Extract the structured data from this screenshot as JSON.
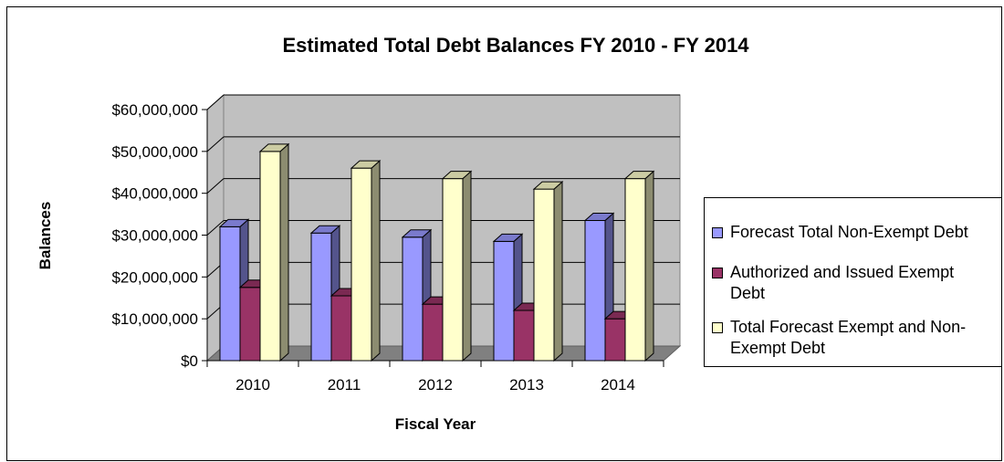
{
  "chart_data": {
    "type": "bar",
    "title": "Estimated Total Debt Balances FY 2010 - FY 2014",
    "xlabel": "Fiscal Year",
    "ylabel": "Balances",
    "categories": [
      "2010",
      "2011",
      "2012",
      "2013",
      "2014"
    ],
    "ylim": [
      0,
      60000000
    ],
    "yticks": [
      "$0",
      "$10,000,000",
      "$20,000,000",
      "$30,000,000",
      "$40,000,000",
      "$50,000,000",
      "$60,000,000"
    ],
    "grid": true,
    "three_d": true,
    "legend_position": "right",
    "series": [
      {
        "name": "Forecast Total Non-Exempt Debt",
        "color": "#9999ff",
        "values": [
          32000000,
          30500000,
          29500000,
          28500000,
          33500000
        ]
      },
      {
        "name": "Authorized and Issued Exempt Debt",
        "color": "#993366",
        "values": [
          17500000,
          15500000,
          13500000,
          12000000,
          10000000
        ]
      },
      {
        "name": "Total Forecast Exempt and Non-Exempt Debt",
        "color": "#ffffcc",
        "values": [
          50000000,
          46000000,
          43500000,
          41000000,
          43500000
        ]
      }
    ]
  }
}
